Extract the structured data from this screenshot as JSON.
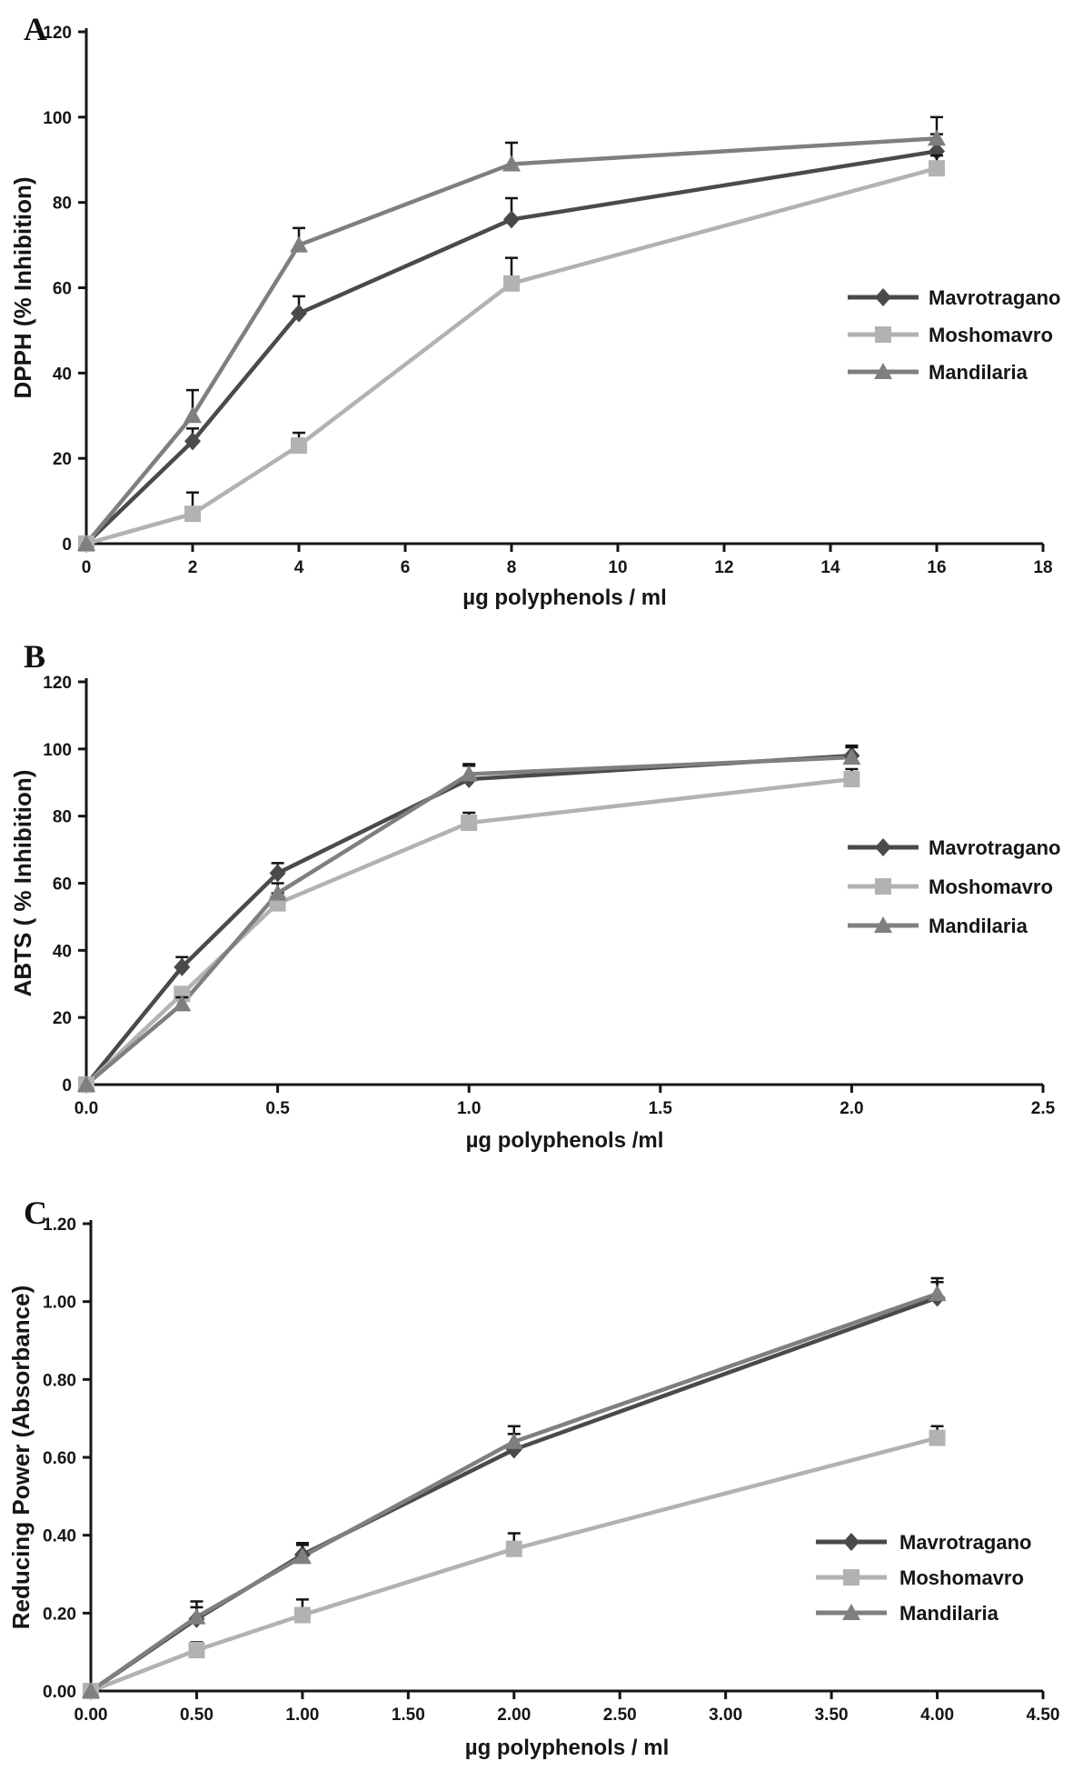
{
  "figure": {
    "background": "#ffffff",
    "text_color": "#161616",
    "error_bar_color": "#141414"
  },
  "series_colors": {
    "Mavrotragano": "#4a4a4a",
    "Moshomavro": "#b2b2b2",
    "Mandilaria": "#7f7f7f"
  },
  "chart_data": [
    {
      "panel_label": "A",
      "type": "line",
      "ylabel": "DPPH (% Inhibition)",
      "xlabel": "µg polyphenols / ml",
      "xlim": [
        0,
        18
      ],
      "ylim": [
        0,
        120
      ],
      "grid": false,
      "legend_position": "right-middle",
      "xticks": [
        0,
        2,
        4,
        6,
        8,
        10,
        12,
        14,
        16,
        18
      ],
      "xtick_labels": [
        "0",
        "2",
        "4",
        "6",
        "8",
        "10",
        "12",
        "14",
        "16",
        "18"
      ],
      "yticks": [
        0,
        20,
        40,
        60,
        80,
        100,
        120
      ],
      "ytick_labels": [
        "0",
        "20",
        "40",
        "60",
        "80",
        "100",
        "120"
      ],
      "x": [
        0,
        2,
        4,
        8,
        16
      ],
      "series": [
        {
          "name": "Mavrotragano",
          "marker": "diamond",
          "color": "#4a4a4a",
          "values": [
            0,
            24,
            54,
            76,
            92
          ],
          "errors": [
            0,
            3,
            4,
            5,
            4
          ]
        },
        {
          "name": "Moshomavro",
          "marker": "square",
          "color": "#b2b2b2",
          "values": [
            0,
            7,
            23,
            61,
            88
          ],
          "errors": [
            0,
            5,
            3,
            6,
            3
          ]
        },
        {
          "name": "Mandilaria",
          "marker": "triangle",
          "color": "#7f7f7f",
          "values": [
            0,
            30,
            70,
            89,
            95
          ],
          "errors": [
            0,
            6,
            4,
            5,
            5
          ]
        }
      ]
    },
    {
      "panel_label": "B",
      "type": "line",
      "ylabel": "ABTS ( %  Inhibition)",
      "xlabel": "µg polyphenols /ml",
      "xlim": [
        0,
        2.5
      ],
      "ylim": [
        0,
        120
      ],
      "grid": false,
      "legend_position": "right-middle",
      "xticks": [
        0,
        0.5,
        1.0,
        1.5,
        2.0,
        2.5
      ],
      "xtick_labels": [
        "0.0",
        "0.5",
        "1.0",
        "1.5",
        "2.0",
        "2.5"
      ],
      "yticks": [
        0,
        20,
        40,
        60,
        80,
        100,
        120
      ],
      "ytick_labels": [
        "0",
        "20",
        "40",
        "60",
        "80",
        "100",
        "120"
      ],
      "x": [
        0,
        0.25,
        0.5,
        1.0,
        2.0
      ],
      "series": [
        {
          "name": "Mavrotragano",
          "marker": "diamond",
          "color": "#4a4a4a",
          "values": [
            0,
            35,
            63,
            91,
            98
          ],
          "errors": [
            0,
            3,
            3,
            4,
            3
          ]
        },
        {
          "name": "Moshomavro",
          "marker": "square",
          "color": "#b2b2b2",
          "values": [
            0,
            27,
            54,
            78,
            91
          ],
          "errors": [
            0,
            2,
            3,
            3,
            3
          ]
        },
        {
          "name": "Mandilaria",
          "marker": "triangle",
          "color": "#7f7f7f",
          "values": [
            0,
            24,
            57,
            92.5,
            97.5
          ],
          "errors": [
            0,
            2,
            3,
            3,
            3
          ]
        }
      ]
    },
    {
      "panel_label": "C",
      "type": "line",
      "ylabel": "Reducing Power (Absorbance)",
      "xlabel": "µg polyphenols / ml",
      "xlim": [
        0,
        4.5
      ],
      "ylim": [
        0,
        1.2
      ],
      "grid": false,
      "legend_position": "right-lower",
      "xticks": [
        0,
        0.5,
        1.0,
        1.5,
        2.0,
        2.5,
        3.0,
        3.5,
        4.0,
        4.5
      ],
      "xtick_labels": [
        "0.00",
        "0.50",
        "1.00",
        "1.50",
        "2.00",
        "2.50",
        "3.00",
        "3.50",
        "4.00",
        "4.50"
      ],
      "yticks": [
        0,
        0.2,
        0.4,
        0.6,
        0.8,
        1.0,
        1.2
      ],
      "ytick_labels": [
        "0.00",
        "0.20",
        "0.40",
        "0.60",
        "0.80",
        "1.00",
        "1.20"
      ],
      "x": [
        0,
        0.5,
        1.0,
        2.0,
        4.0
      ],
      "series": [
        {
          "name": "Mavrotragano",
          "marker": "diamond",
          "color": "#4a4a4a",
          "values": [
            0,
            0.185,
            0.35,
            0.62,
            1.01
          ],
          "errors": [
            0,
            0.03,
            0.03,
            0.04,
            0.04
          ]
        },
        {
          "name": "Moshomavro",
          "marker": "square",
          "color": "#b2b2b2",
          "values": [
            0,
            0.105,
            0.195,
            0.365,
            0.65
          ],
          "errors": [
            0,
            0.02,
            0.04,
            0.04,
            0.03
          ]
        },
        {
          "name": "Mandilaria",
          "marker": "triangle",
          "color": "#7f7f7f",
          "values": [
            0,
            0.19,
            0.345,
            0.64,
            1.02
          ],
          "errors": [
            0,
            0.04,
            0.03,
            0.04,
            0.04
          ]
        }
      ]
    }
  ]
}
